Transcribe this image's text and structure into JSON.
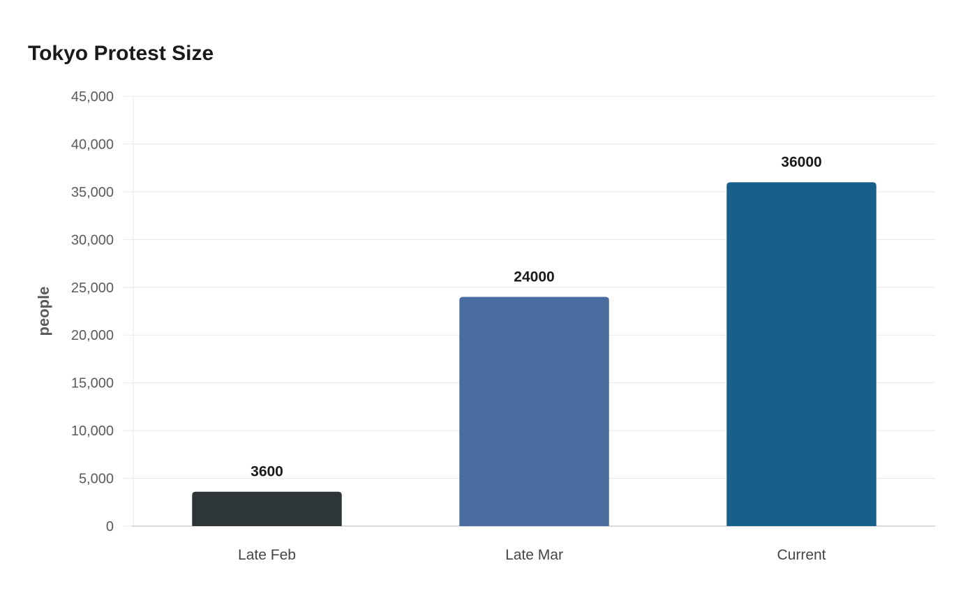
{
  "chart_data": {
    "type": "bar",
    "title": "Tokyo Protest Size",
    "xlabel": "",
    "ylabel": "people",
    "categories": [
      "Late Feb",
      "Late Mar",
      "Current"
    ],
    "values": [
      3600,
      24000,
      36000
    ],
    "value_labels": [
      "3600",
      "24000",
      "36000"
    ],
    "colors": [
      "#2d3538",
      "#4a6da0",
      "#176089"
    ],
    "ylim": [
      0,
      45000
    ],
    "yticks": [
      0,
      5000,
      10000,
      15000,
      20000,
      25000,
      30000,
      35000,
      40000,
      45000
    ],
    "ytick_labels": [
      "0",
      "5,000",
      "10,000",
      "15,000",
      "20,000",
      "25,000",
      "30,000",
      "35,000",
      "40,000",
      "45,000"
    ],
    "grid": true,
    "legend": "none"
  }
}
